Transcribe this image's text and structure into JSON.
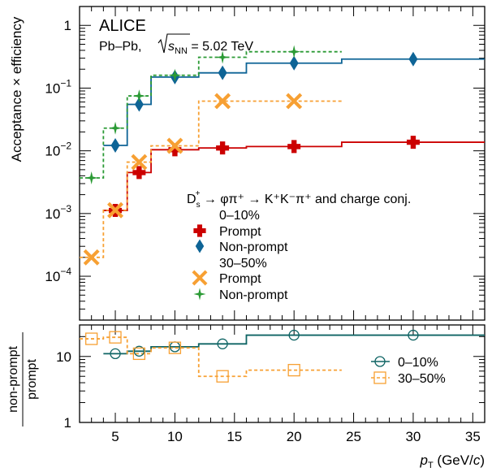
{
  "chart_data": [
    {
      "type": "step-scatter",
      "experiment": "ALICE",
      "system": "Pb–Pb, ",
      "energy_label": "s",
      "energy_sub": "NN",
      "energy_value": " = 5.02 TeV",
      "ylabel": "Acceptance × efficiency",
      "yscale": "log",
      "ylim": [
        2e-05,
        2
      ],
      "xlim": [
        2,
        36
      ],
      "yticks": [
        {
          "v": 0.0001,
          "base": "10",
          "exp": "−4"
        },
        {
          "v": 0.001,
          "base": "10",
          "exp": "−3"
        },
        {
          "v": 0.01,
          "base": "10",
          "exp": "−2"
        },
        {
          "v": 0.1,
          "base": "10",
          "exp": "−1"
        },
        {
          "v": 1,
          "base": "1",
          "exp": ""
        }
      ],
      "legend_header": {
        "d": "D",
        "sub": "s",
        "sup": "+",
        "rest": " → φπ⁺ → K⁺K⁻π⁺ and charge conj."
      },
      "legend_groups": [
        "0–10%",
        "30–50%"
      ],
      "series": [
        {
          "name": "Prompt",
          "group": "0–10%",
          "color": "#cc0000",
          "marker": "cross",
          "line": "solid",
          "x": [
            5,
            7,
            10,
            14,
            20,
            30
          ],
          "edges": [
            [
              4,
              6
            ],
            [
              6,
              8
            ],
            [
              8,
              12
            ],
            [
              12,
              16
            ],
            [
              16,
              24
            ],
            [
              24,
              36
            ]
          ],
          "values": [
            0.00112,
            0.0045,
            0.0104,
            0.0111,
            0.0117,
            0.0137
          ]
        },
        {
          "name": "Non-prompt",
          "group": "0–10%",
          "color": "#0e6496",
          "marker": "diamond",
          "line": "solid",
          "x": [
            5,
            7,
            10,
            14,
            20,
            30
          ],
          "edges": [
            [
              4,
              6
            ],
            [
              6,
              8
            ],
            [
              8,
              12
            ],
            [
              12,
              16
            ],
            [
              16,
              24
            ],
            [
              24,
              36
            ]
          ],
          "values": [
            0.0122,
            0.055,
            0.15,
            0.175,
            0.25,
            0.29
          ]
        },
        {
          "name": "Prompt",
          "group": "30–50%",
          "color": "#f7a033",
          "marker": "xcross",
          "line": "dashed",
          "x": [
            3,
            5,
            7,
            10,
            14,
            20
          ],
          "edges": [
            [
              2,
              4
            ],
            [
              4,
              6
            ],
            [
              6,
              8
            ],
            [
              8,
              12
            ],
            [
              12,
              16
            ],
            [
              16,
              24
            ]
          ],
          "values": [
            0.0002,
            0.00113,
            0.0066,
            0.012,
            0.062,
            0.062
          ]
        },
        {
          "name": "Non-prompt",
          "group": "30–50%",
          "color": "#2b9a35",
          "marker": "star",
          "line": "dashed",
          "x": [
            3,
            5,
            7,
            10,
            14,
            20
          ],
          "edges": [
            [
              2,
              4
            ],
            [
              4,
              6
            ],
            [
              6,
              8
            ],
            [
              8,
              12
            ],
            [
              12,
              16
            ],
            [
              16,
              24
            ]
          ],
          "values": [
            0.0037,
            0.023,
            0.075,
            0.16,
            0.31,
            0.38
          ]
        }
      ]
    },
    {
      "type": "step-scatter",
      "ylabel_num": "non-prompt",
      "ylabel_den": "prompt",
      "xlabel_p": "p",
      "xlabel_sub": "T",
      "xlabel_unit_open": " (GeV/",
      "xlabel_c": "c",
      "xlabel_unit_close": ")",
      "yscale": "log",
      "ylim": [
        1,
        30
      ],
      "xlim": [
        2,
        36
      ],
      "xticks": [
        5,
        10,
        15,
        20,
        25,
        30,
        35
      ],
      "yticks": [
        1,
        10
      ],
      "series": [
        {
          "name": "0–10%",
          "color": "#0e6464",
          "marker": "open-circle",
          "line": "solid",
          "x": [
            5,
            7,
            10,
            14,
            20,
            30
          ],
          "edges": [
            [
              4,
              6
            ],
            [
              6,
              8
            ],
            [
              8,
              12
            ],
            [
              12,
              16
            ],
            [
              16,
              24
            ],
            [
              24,
              36
            ]
          ],
          "values": [
            11,
            12,
            14,
            15.5,
            21,
            21
          ]
        },
        {
          "name": "30–50%",
          "color": "#f7a033",
          "marker": "open-square",
          "line": "dashed",
          "x": [
            3,
            5,
            7,
            10,
            14,
            20
          ],
          "edges": [
            [
              2,
              4
            ],
            [
              4,
              6
            ],
            [
              6,
              8
            ],
            [
              8,
              12
            ],
            [
              12,
              16
            ],
            [
              16,
              24
            ]
          ],
          "values": [
            18.5,
            19.5,
            11,
            13.5,
            5,
            6.2
          ]
        }
      ]
    }
  ]
}
